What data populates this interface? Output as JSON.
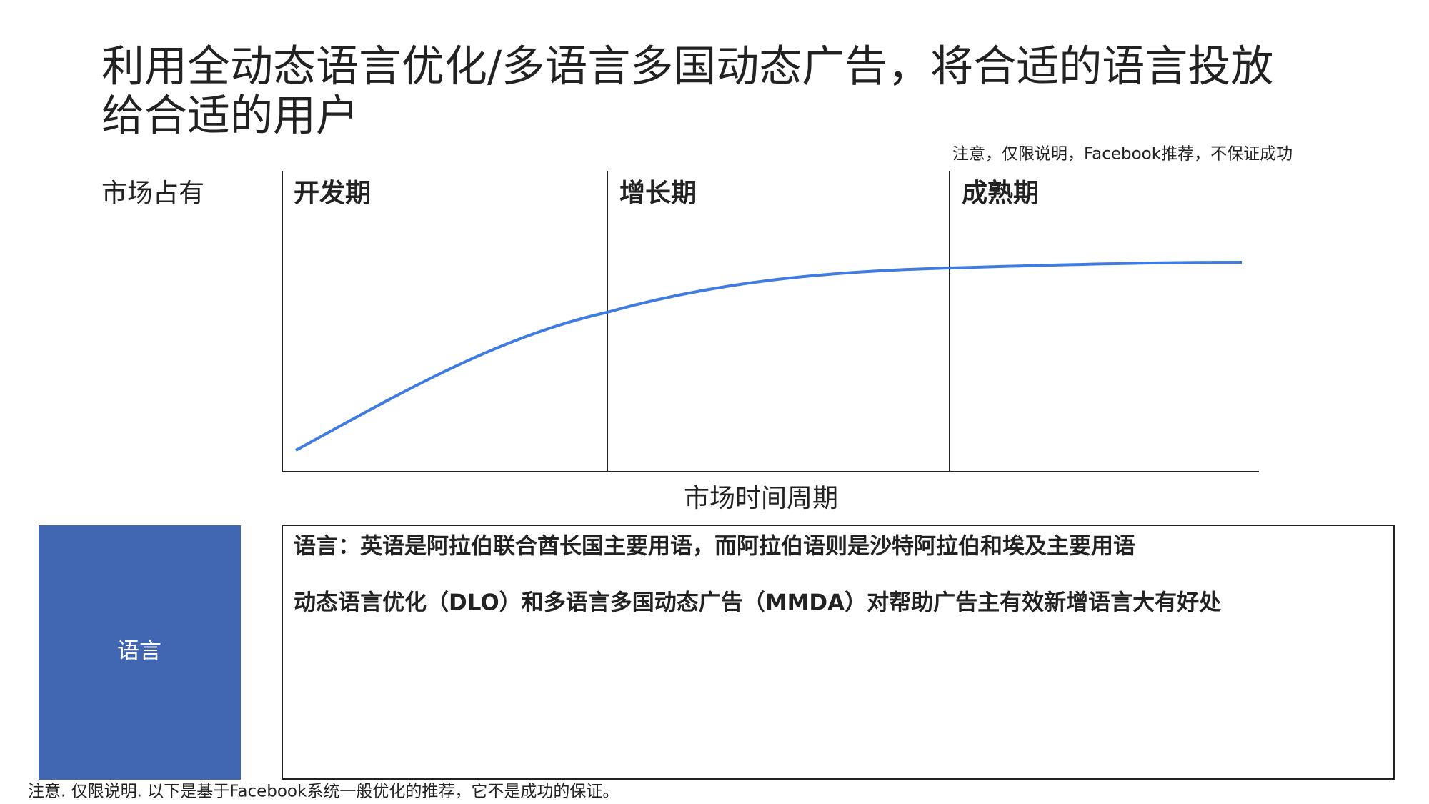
{
  "header": {
    "title_lines": [
      "利用全动态语言优化/多语言多国动态广告，将合适的语言投放",
      "给合适的用户"
    ],
    "note": "注意，仅限说明，Facebook推荐，不保证成功"
  },
  "diagram": {
    "y_label": "市场占有",
    "x_label": "市场时间周期",
    "phases": [
      "开发期",
      "增长期",
      "成熟期"
    ]
  },
  "panel": {
    "label": "语言",
    "lines": [
      "语言：英语是阿拉伯联合酋长国主要用语，而阿拉伯语则是沙特阿拉伯和埃及主要用语",
      "动态语言优化（DLO）和多语言多国动态广告（MMDA）对帮助广告主有效新增语言大有好处"
    ]
  },
  "footer": "注意. 仅限说明. 以下是基于Facebook系统一般优化的推荐，它不是成功的保证。"
}
